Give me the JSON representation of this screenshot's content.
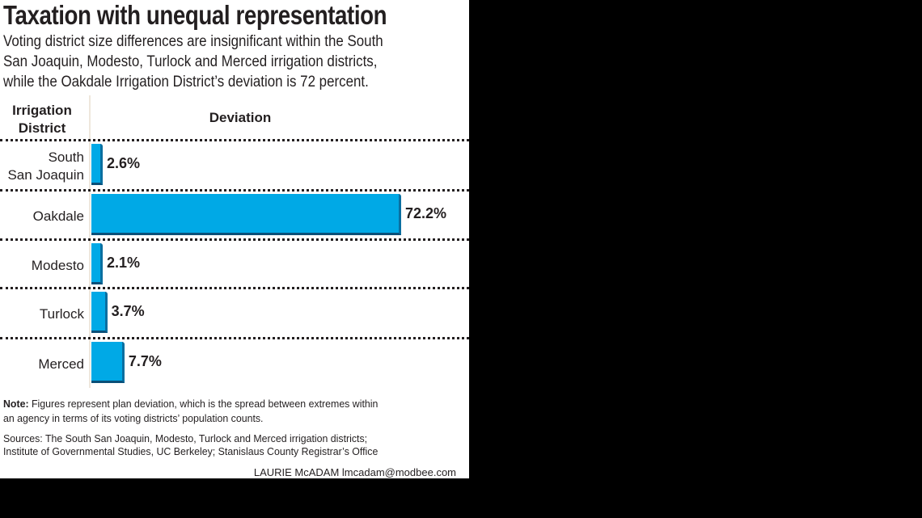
{
  "chart_data": {
    "type": "bar",
    "orientation": "horizontal",
    "title": "Taxation with unequal representation",
    "subtitle": [
      "Voting district size differences are insignificant within the South",
      "San Joaquin, Modesto, Turlock and Merced irrigation districts,",
      "while the Oakdale Irrigation District’s deviation is 72 percent."
    ],
    "column_headers": {
      "category": "Irrigation District",
      "value": "Deviation"
    },
    "categories": [
      [
        "South",
        "San Joaquin"
      ],
      [
        "Oakdale"
      ],
      [
        "Modesto"
      ],
      [
        "Turlock"
      ],
      [
        "Merced"
      ]
    ],
    "values": [
      2.6,
      72.2,
      2.1,
      3.7,
      7.7
    ],
    "data_labels": [
      "2.6%",
      "72.2%",
      "2.1%",
      "3.7%",
      "7.7%"
    ],
    "bar_color": "#00a9e6",
    "xlim": [
      0,
      72.2
    ],
    "grid": false
  },
  "note": {
    "label": "Note:",
    "lines": [
      "Figures represent plan deviation, which is the spread between extremes within",
      "an agency in terms of its voting districts’ population counts."
    ]
  },
  "sources": [
    "Sources: The South San Joaquin, Modesto, Turlock and Merced irrigation districts;",
    "Institute of Governmental Studies, UC Berkeley; Stanislaus County Registrar’s Office"
  ],
  "credit": "LAURIE McADAM  lmcadam@modbee.com"
}
